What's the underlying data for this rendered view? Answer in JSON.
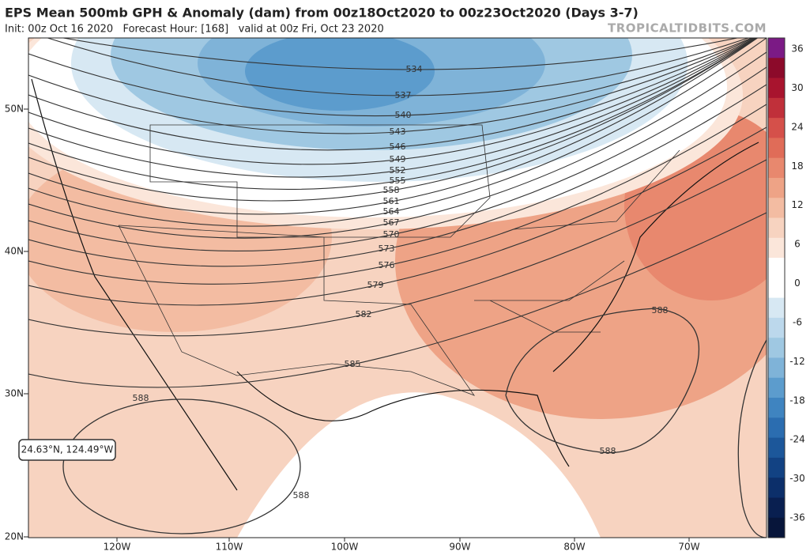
{
  "header": {
    "title": "EPS Mean 500mb GPH & Anomaly (dam) from 00z18Oct2020 to 00z23Oct2020 (Days 3-7)",
    "subtitle": "Init: 00z Oct 16 2020   Forecast Hour: [168]   valid at 00z Fri, Oct 23 2020",
    "source": "TROPICALTIDBITS.COM"
  },
  "map": {
    "lat_labels": [
      "50N",
      "40N",
      "30N",
      "20N"
    ],
    "lon_labels": [
      "120W",
      "110W",
      "100W",
      "90W",
      "80W",
      "70W"
    ],
    "contour_labels": [
      "534",
      "537",
      "540",
      "543",
      "546",
      "549",
      "552",
      "555",
      "558",
      "561",
      "564",
      "567",
      "570",
      "573",
      "576",
      "579",
      "582",
      "585",
      "588",
      "588",
      "588",
      "588"
    ],
    "cursor": "24.63°N, 124.49°W"
  },
  "colorbar": {
    "labels": [
      "36",
      "30",
      "24",
      "18",
      "12",
      "6",
      "0",
      "-6",
      "-12",
      "-18",
      "-24",
      "-30",
      "-36"
    ],
    "colors": [
      "#7b1a85",
      "#8c0a2a",
      "#a8142e",
      "#c0303a",
      "#d5504a",
      "#e06c58",
      "#e8886e",
      "#eea386",
      "#f3bca2",
      "#f7d3c0",
      "#fbe6da",
      "#ffffff",
      "#ffffff",
      "#d7e8f3",
      "#bcd8ec",
      "#9fc8e2",
      "#7fb3d8",
      "#5c9ccd",
      "#3f84c0",
      "#2b6db0",
      "#1c579a",
      "#124283",
      "#0c2f6a",
      "#091f50",
      "#07153a"
    ]
  }
}
